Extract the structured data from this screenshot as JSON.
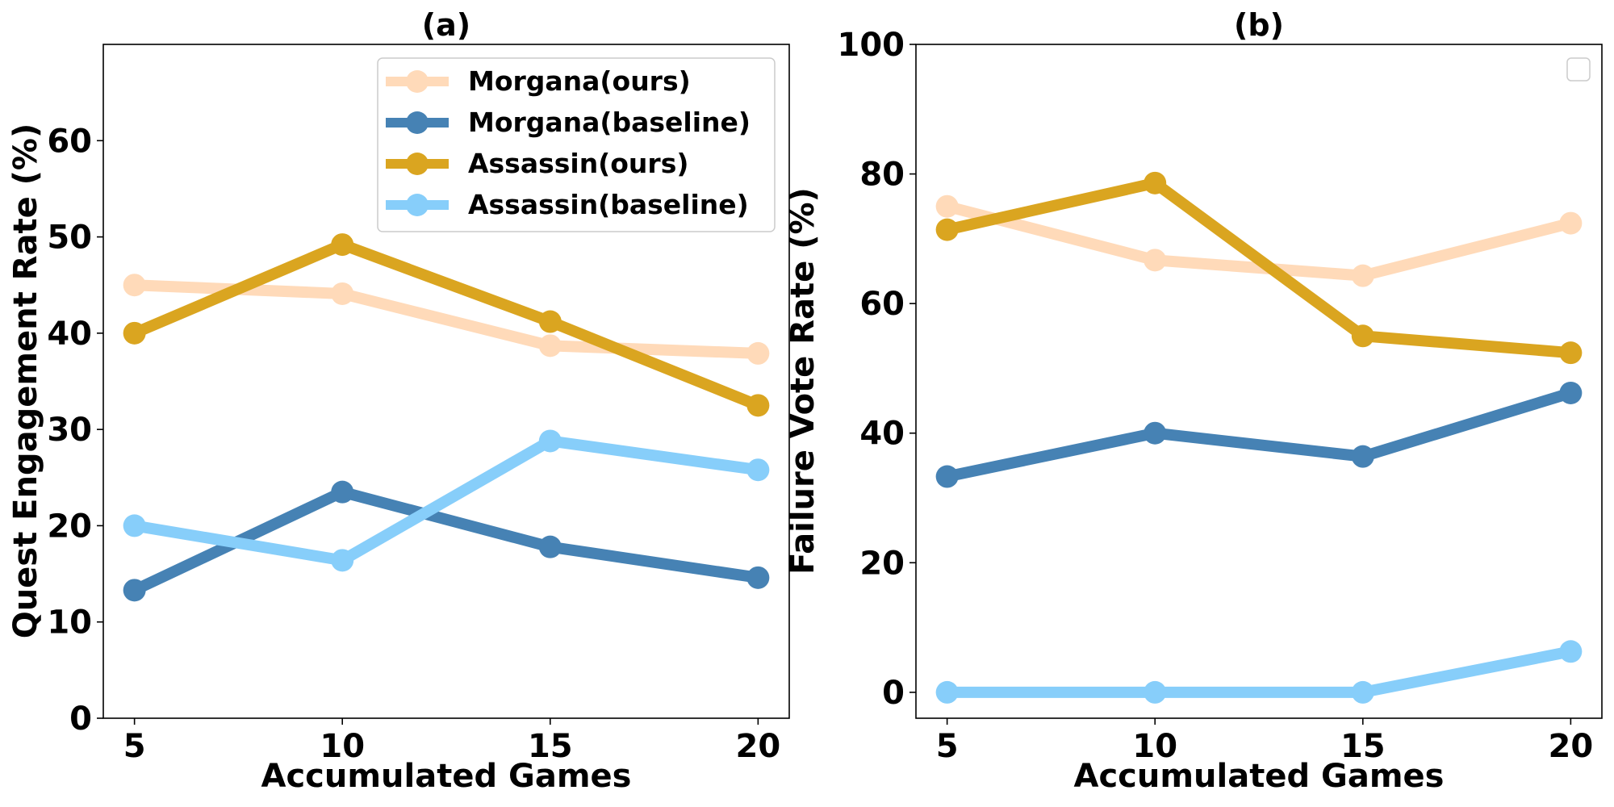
{
  "chart_data": [
    {
      "type": "line",
      "title": "(a)",
      "xlabel": "Accumulated Games",
      "ylabel": "Quest Engagement Rate (%)",
      "x": [
        5,
        10,
        15,
        20
      ],
      "xticks": [
        "5",
        "10",
        "15",
        "20"
      ],
      "xlim": [
        4.25,
        20.75
      ],
      "ylim": [
        0,
        70
      ],
      "yticks": [
        "0",
        "10",
        "20",
        "30",
        "40",
        "50",
        "60"
      ],
      "legend": {
        "placement": "top-right",
        "entries": [
          "Morgana(ours)",
          "Morgana(baseline)",
          "Assassin(ours)",
          "Assassin(baseline)"
        ]
      },
      "series": [
        {
          "name": "Morgana(ours)",
          "color": "#FFDAB9",
          "values": [
            45.0,
            44.1,
            38.7,
            37.9
          ]
        },
        {
          "name": "Morgana(baseline)",
          "color": "#4682B4",
          "values": [
            13.3,
            23.5,
            17.8,
            14.6
          ]
        },
        {
          "name": "Assassin(ours)",
          "color": "#DAA520",
          "values": [
            40.0,
            49.2,
            41.2,
            32.5
          ]
        },
        {
          "name": "Assassin(baseline)",
          "color": "#87CEFA",
          "values": [
            20.0,
            16.4,
            28.8,
            25.8
          ]
        }
      ]
    },
    {
      "type": "line",
      "title": "(b)",
      "xlabel": "Accumulated Games",
      "ylabel": "Failure Vote Rate (%)",
      "x": [
        5,
        10,
        15,
        20
      ],
      "xticks": [
        "5",
        "10",
        "15",
        "20"
      ],
      "xlim": [
        4.25,
        20.75
      ],
      "ylim": [
        -4,
        100
      ],
      "yticks": [
        "0",
        "20",
        "40",
        "60",
        "80",
        "100"
      ],
      "legend": {
        "placement": "top-right",
        "entries": []
      },
      "series": [
        {
          "name": "Morgana(ours)",
          "color": "#FFDAB9",
          "values": [
            75.0,
            66.7,
            64.3,
            72.4
          ]
        },
        {
          "name": "Morgana(baseline)",
          "color": "#4682B4",
          "values": [
            33.3,
            40.0,
            36.4,
            46.2
          ]
        },
        {
          "name": "Assassin(ours)",
          "color": "#DAA520",
          "values": [
            71.4,
            78.6,
            55.0,
            52.4
          ]
        },
        {
          "name": "Assassin(baseline)",
          "color": "#87CEFA",
          "values": [
            0.0,
            0.0,
            0.0,
            6.3
          ]
        }
      ]
    }
  ]
}
